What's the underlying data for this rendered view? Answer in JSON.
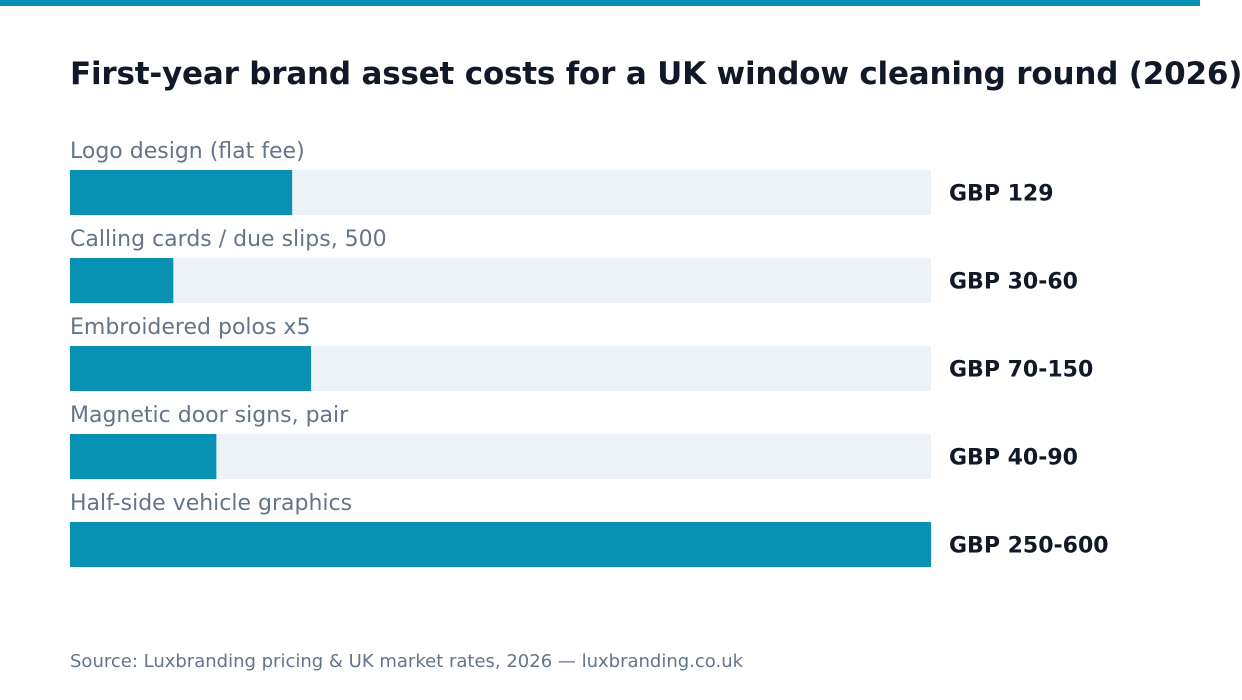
{
  "colors": {
    "accent": "#0891b2",
    "track": "#edf2f7",
    "title": "#111827",
    "muted": "#64748b"
  },
  "chart_data": {
    "type": "bar",
    "orientation": "horizontal",
    "title": "First-year brand asset costs for a UK window cleaning round (2026)",
    "categories": [
      "Logo design (flat fee)",
      "Calling cards / due slips, 500",
      "Embroidered polos x5",
      "Magnetic door signs, pair",
      "Half-side vehicle graphics"
    ],
    "values": [
      129,
      60,
      140,
      85,
      500
    ],
    "value_labels": [
      "GBP 129",
      "GBP 30-60",
      "GBP 70-150",
      "GBP 40-90",
      "GBP 250-600"
    ],
    "xlim": [
      0,
      500
    ],
    "grid": false,
    "legend": "none"
  },
  "source": "Source: Luxbranding pricing & UK market rates, 2026 — luxbranding.co.uk"
}
